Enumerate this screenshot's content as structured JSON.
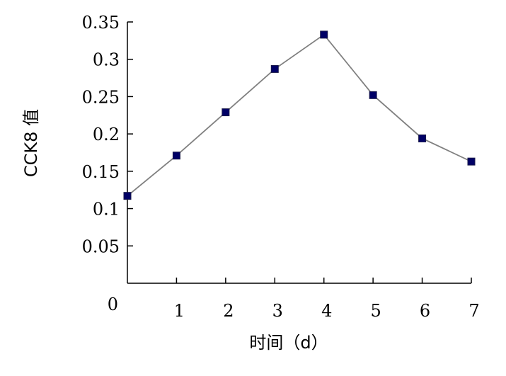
{
  "chart_data": {
    "type": "line",
    "title": "",
    "xlabel": "时间（d）",
    "ylabel": "CCK8 值",
    "x": [
      0,
      1,
      2,
      3,
      4,
      5,
      6,
      7
    ],
    "x_tick_labels": [
      "0",
      "1",
      "2",
      "3",
      "4",
      "5",
      "6",
      "7"
    ],
    "y_tick_labels": [
      "0.05",
      "0.1",
      "0.15",
      "0.2",
      "0.25",
      "0.3",
      "0.35"
    ],
    "y_ticks": [
      0.05,
      0.1,
      0.15,
      0.2,
      0.25,
      0.3,
      0.35
    ],
    "ylim": [
      0,
      0.35
    ],
    "xlim": [
      0,
      7
    ],
    "grid": false,
    "series": [
      {
        "values": [
          0.117,
          0.171,
          0.229,
          0.287,
          0.333,
          0.252,
          0.194,
          0.163
        ],
        "line_color": "#808080",
        "marker_color": "#000066",
        "marker": "square"
      }
    ]
  }
}
